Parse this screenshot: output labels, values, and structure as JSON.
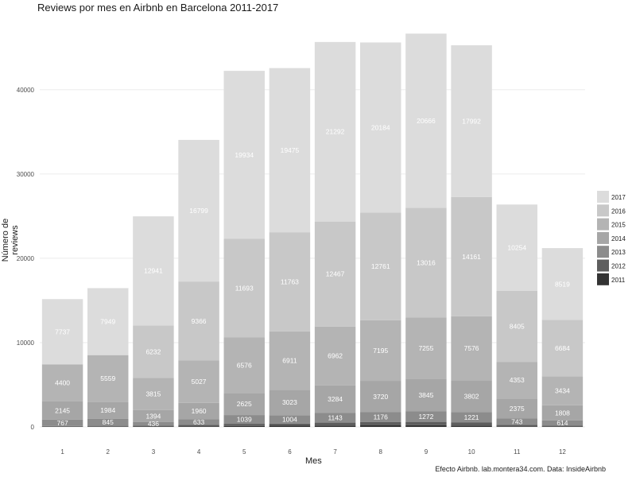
{
  "chart_data": {
    "type": "bar",
    "stacked": true,
    "title": "Reviews por mes en Airbnb en Barcelona 2011-2017",
    "xlabel": "Mes",
    "ylabel": "Número de reviews",
    "caption": "Efecto Airbnb. lab.montera34.com. Data: InsideAirbnb",
    "categories": [
      "1",
      "2",
      "3",
      "4",
      "5",
      "6",
      "7",
      "8",
      "9",
      "10",
      "11",
      "12"
    ],
    "yticks": [
      0,
      10000,
      20000,
      30000,
      40000
    ],
    "ylim": [
      0,
      48000
    ],
    "grid": true,
    "legend_position": "right",
    "series": [
      {
        "name": "2011",
        "color": "#333333",
        "values": [
          20,
          30,
          40,
          80,
          120,
          140,
          160,
          190,
          200,
          160,
          60,
          40
        ],
        "labels": [
          "",
          "",
          "",
          "",
          "",
          "",
          "",
          "",
          "",
          "",
          "",
          ""
        ]
      },
      {
        "name": "2012",
        "color": "#5e5e5e",
        "values": [
          90,
          100,
          120,
          180,
          250,
          250,
          350,
          380,
          400,
          360,
          190,
          110
        ],
        "labels": [
          "",
          "",
          "",
          "",
          "",
          "",
          "",
          "",
          "",
          "",
          "",
          ""
        ]
      },
      {
        "name": "2013",
        "color": "#8c8c8c",
        "values": [
          767,
          845,
          436,
          633,
          1039,
          1004,
          1143,
          1176,
          1272,
          1221,
          743,
          614
        ],
        "labels": [
          "767",
          "845",
          "436",
          "633",
          "1039",
          "1004",
          "1143",
          "1176",
          "1272",
          "1221",
          "743",
          "614"
        ]
      },
      {
        "name": "2014",
        "color": "#a6a6a6",
        "values": [
          2145,
          1984,
          1394,
          1960,
          2625,
          3023,
          3284,
          3720,
          3845,
          3802,
          2375,
          1808
        ],
        "labels": [
          "2145",
          "1984",
          "1394",
          "1960",
          "2625",
          "3023",
          "3284",
          "3720",
          "3845",
          "3802",
          "2375",
          "1808"
        ]
      },
      {
        "name": "2015",
        "color": "#b4b4b4",
        "values": [
          4400,
          5559,
          3815,
          5027,
          6576,
          6911,
          6962,
          7195,
          7255,
          7576,
          4353,
          3434
        ],
        "labels": [
          "4400",
          "5559",
          "3815",
          "5027",
          "6576",
          "6911",
          "6962",
          "7195",
          "7255",
          "7576",
          "4353",
          "3434"
        ]
      },
      {
        "name": "2016",
        "color": "#c8c8c8",
        "values": [
          0,
          0,
          6232,
          9366,
          11693,
          11763,
          12467,
          12761,
          13016,
          14161,
          8405,
          6684
        ],
        "labels": [
          "",
          "",
          "6232",
          "9366",
          "11693",
          "11763",
          "12467",
          "12761",
          "13016",
          "14161",
          "8405",
          "6684"
        ]
      },
      {
        "name": "2017",
        "color": "#dcdcdc",
        "values": [
          7737,
          7949,
          12941,
          16799,
          19934,
          19475,
          21292,
          20184,
          20666,
          17992,
          10254,
          8519
        ],
        "labels": [
          "7737",
          "7949",
          "12941",
          "16799",
          "19934",
          "19475",
          "21292",
          "20184",
          "20666",
          "17992",
          "10254",
          "8519"
        ]
      }
    ]
  }
}
